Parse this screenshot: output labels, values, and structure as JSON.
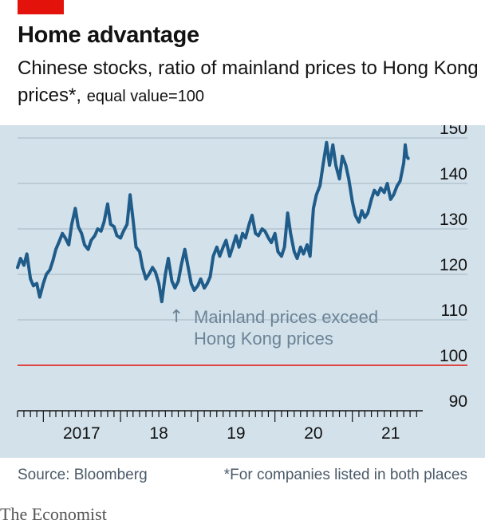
{
  "header": {
    "title": "Home advantage",
    "subtitle_main": "Chinese stocks, ratio of mainland prices to Hong Kong prices*,",
    "subtitle_unit": "equal value=100"
  },
  "footer": {
    "source": "Source: Bloomberg",
    "note": "*For companies listed in both places"
  },
  "brand": "The Economist",
  "colors": {
    "series": "#1f5c8a",
    "reference_line": "#e3120b",
    "gridline": "#aebfca",
    "panel_bg": "#d3e1ea",
    "axis_text": "#121212",
    "annotation_text": "#6b8497"
  },
  "chart_data": {
    "type": "line",
    "xlabel": "",
    "ylabel": "",
    "ylim": [
      90,
      150
    ],
    "y_ticks": [
      90,
      100,
      110,
      120,
      130,
      140,
      150
    ],
    "y_axis_position": "right",
    "grid": true,
    "x_tick_labels": [
      "2017",
      "18",
      "19",
      "20",
      "21"
    ],
    "x_tick_label_dates": [
      "2017-07-01",
      "2018-07-01",
      "2019-07-01",
      "2020-07-01",
      "2021-07-01"
    ],
    "x_range": [
      "2016-09-01",
      "2021-11-30"
    ],
    "reference_line": {
      "y": 100
    },
    "annotation": {
      "arrow": "↑",
      "lines": [
        "Mainland prices exceed",
        "Hong Kong prices"
      ]
    },
    "series": [
      {
        "points": [
          [
            "2016-09-01",
            121.5
          ],
          [
            "2016-09-15",
            123.5
          ],
          [
            "2016-10-01",
            122
          ],
          [
            "2016-10-15",
            124.5
          ],
          [
            "2016-11-01",
            119
          ],
          [
            "2016-11-15",
            117.5
          ],
          [
            "2016-12-01",
            118
          ],
          [
            "2016-12-15",
            115
          ],
          [
            "2017-01-01",
            118
          ],
          [
            "2017-01-15",
            120
          ],
          [
            "2017-02-01",
            121
          ],
          [
            "2017-02-15",
            123
          ],
          [
            "2017-03-01",
            125.5
          ],
          [
            "2017-03-15",
            127
          ],
          [
            "2017-04-01",
            129
          ],
          [
            "2017-04-15",
            128
          ],
          [
            "2017-05-01",
            126.5
          ],
          [
            "2017-05-15",
            131
          ],
          [
            "2017-06-01",
            134.5
          ],
          [
            "2017-06-15",
            130.5
          ],
          [
            "2017-07-01",
            129
          ],
          [
            "2017-07-15",
            126.5
          ],
          [
            "2017-08-01",
            125.5
          ],
          [
            "2017-08-15",
            127.5
          ],
          [
            "2017-09-01",
            128.5
          ],
          [
            "2017-09-15",
            130
          ],
          [
            "2017-10-01",
            129.5
          ],
          [
            "2017-10-15",
            131.5
          ],
          [
            "2017-11-01",
            135.5
          ],
          [
            "2017-11-15",
            131
          ],
          [
            "2017-12-01",
            130.5
          ],
          [
            "2017-12-15",
            128.5
          ],
          [
            "2018-01-01",
            128
          ],
          [
            "2018-01-15",
            129.5
          ],
          [
            "2018-02-01",
            131
          ],
          [
            "2018-02-15",
            137.5
          ],
          [
            "2018-03-01",
            132
          ],
          [
            "2018-03-15",
            126
          ],
          [
            "2018-04-01",
            125
          ],
          [
            "2018-04-15",
            121.5
          ],
          [
            "2018-05-01",
            119
          ],
          [
            "2018-05-15",
            120
          ],
          [
            "2018-06-01",
            121.5
          ],
          [
            "2018-06-15",
            120.5
          ],
          [
            "2018-07-01",
            118
          ],
          [
            "2018-07-15",
            114
          ],
          [
            "2018-08-01",
            120
          ],
          [
            "2018-08-15",
            123.5
          ],
          [
            "2018-09-01",
            118.5
          ],
          [
            "2018-09-15",
            117
          ],
          [
            "2018-10-01",
            118.5
          ],
          [
            "2018-10-15",
            122
          ],
          [
            "2018-11-01",
            125.5
          ],
          [
            "2018-11-15",
            122
          ],
          [
            "2018-12-01",
            118
          ],
          [
            "2018-12-15",
            116.5
          ],
          [
            "2019-01-01",
            117.5
          ],
          [
            "2019-01-15",
            119
          ],
          [
            "2019-02-01",
            117
          ],
          [
            "2019-02-15",
            118
          ],
          [
            "2019-03-01",
            119.5
          ],
          [
            "2019-03-15",
            124
          ],
          [
            "2019-04-01",
            126
          ],
          [
            "2019-04-15",
            124
          ],
          [
            "2019-05-01",
            126
          ],
          [
            "2019-05-15",
            127.5
          ],
          [
            "2019-06-01",
            124
          ],
          [
            "2019-06-15",
            126
          ],
          [
            "2019-07-01",
            128.5
          ],
          [
            "2019-07-15",
            126
          ],
          [
            "2019-08-01",
            129
          ],
          [
            "2019-08-15",
            128
          ],
          [
            "2019-09-01",
            131
          ],
          [
            "2019-09-15",
            133
          ],
          [
            "2019-10-01",
            129
          ],
          [
            "2019-10-15",
            128.5
          ],
          [
            "2019-11-01",
            130
          ],
          [
            "2019-11-15",
            129.5
          ],
          [
            "2019-12-01",
            128
          ],
          [
            "2019-12-15",
            127
          ],
          [
            "2020-01-01",
            129
          ],
          [
            "2020-01-15",
            125
          ],
          [
            "2020-02-01",
            124
          ],
          [
            "2020-02-15",
            126
          ],
          [
            "2020-03-01",
            133.5
          ],
          [
            "2020-03-15",
            129
          ],
          [
            "2020-04-01",
            125
          ],
          [
            "2020-04-15",
            123.5
          ],
          [
            "2020-05-01",
            126
          ],
          [
            "2020-05-15",
            124.5
          ],
          [
            "2020-06-01",
            126.5
          ],
          [
            "2020-06-15",
            124
          ],
          [
            "2020-07-01",
            134.5
          ],
          [
            "2020-07-15",
            137.5
          ],
          [
            "2020-08-01",
            139.5
          ],
          [
            "2020-08-15",
            144
          ],
          [
            "2020-09-01",
            149
          ],
          [
            "2020-09-15",
            144
          ],
          [
            "2020-10-01",
            148.5
          ],
          [
            "2020-10-15",
            144
          ],
          [
            "2020-11-01",
            141
          ],
          [
            "2020-11-15",
            146
          ],
          [
            "2020-12-01",
            144
          ],
          [
            "2020-12-15",
            141
          ],
          [
            "2021-01-01",
            136
          ],
          [
            "2021-01-15",
            133
          ],
          [
            "2021-02-01",
            131.5
          ],
          [
            "2021-02-15",
            134
          ],
          [
            "2021-03-01",
            132.5
          ],
          [
            "2021-03-15",
            133.5
          ],
          [
            "2021-04-01",
            136.5
          ],
          [
            "2021-04-15",
            138.5
          ],
          [
            "2021-05-01",
            137.5
          ],
          [
            "2021-05-15",
            139
          ],
          [
            "2021-06-01",
            138
          ],
          [
            "2021-06-15",
            140
          ],
          [
            "2021-07-01",
            136.5
          ],
          [
            "2021-07-15",
            137.5
          ],
          [
            "2021-08-01",
            139.5
          ],
          [
            "2021-08-15",
            140.5
          ],
          [
            "2021-09-01",
            144.5
          ],
          [
            "2021-09-08",
            148.5
          ],
          [
            "2021-09-15",
            146
          ],
          [
            "2021-09-22",
            145.5
          ]
        ]
      }
    ]
  }
}
